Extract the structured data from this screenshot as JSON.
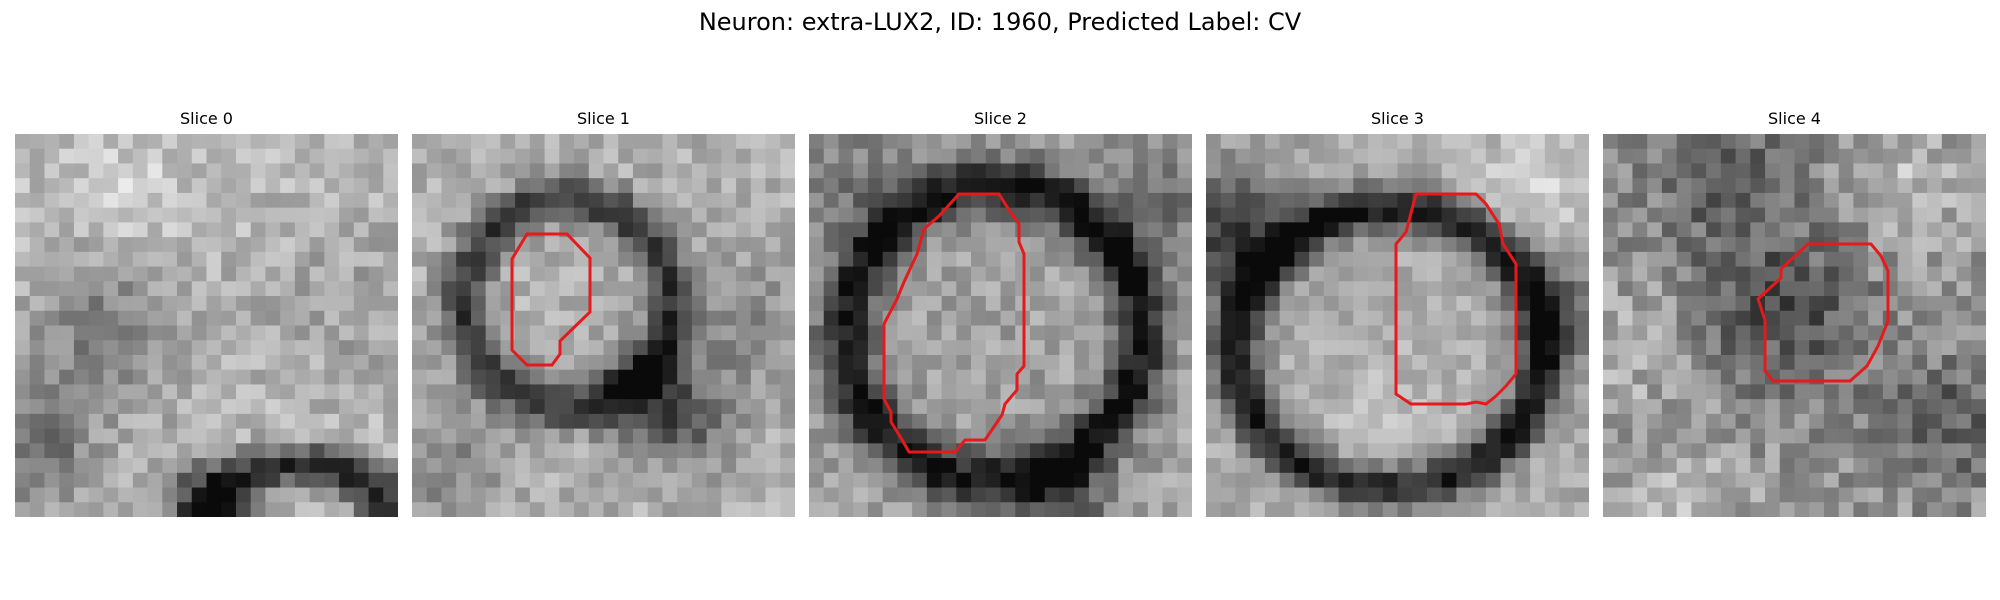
{
  "figure": {
    "title": "Neuron: extra-LUX2, ID: 1960, Predicted Label: CV",
    "contour_color": "#e41a1c"
  },
  "panels": [
    {
      "title": "Slice 0",
      "has_contour": false
    },
    {
      "title": "Slice 1",
      "has_contour": true
    },
    {
      "title": "Slice 2",
      "has_contour": true
    },
    {
      "title": "Slice 3",
      "has_contour": true
    },
    {
      "title": "Slice 4",
      "has_contour": true
    }
  ]
}
